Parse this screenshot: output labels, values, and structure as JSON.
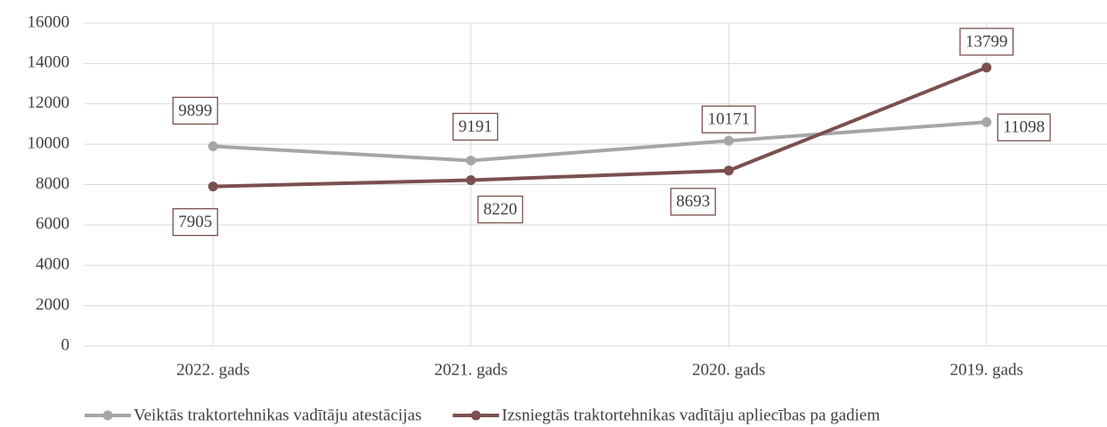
{
  "chart_data": {
    "type": "line",
    "categories": [
      "2022. gads",
      "2021. gads",
      "2020. gads",
      "2019. gads"
    ],
    "series": [
      {
        "name": "Veiktās traktortehnikas vadītāju atestācijas",
        "color": "#a6a6a6",
        "values": [
          9899,
          9191,
          10171,
          11098
        ]
      },
      {
        "name": "Izsniegtās traktortehnikas vadītāju apliecības pa gadiem",
        "color": "#7b504e",
        "values": [
          7905,
          8220,
          8693,
          13799
        ]
      }
    ],
    "ylim": [
      0,
      16000
    ],
    "yticks": [
      0,
      2000,
      4000,
      6000,
      8000,
      10000,
      12000,
      14000,
      16000
    ],
    "grid": true,
    "legend": "bottom"
  }
}
